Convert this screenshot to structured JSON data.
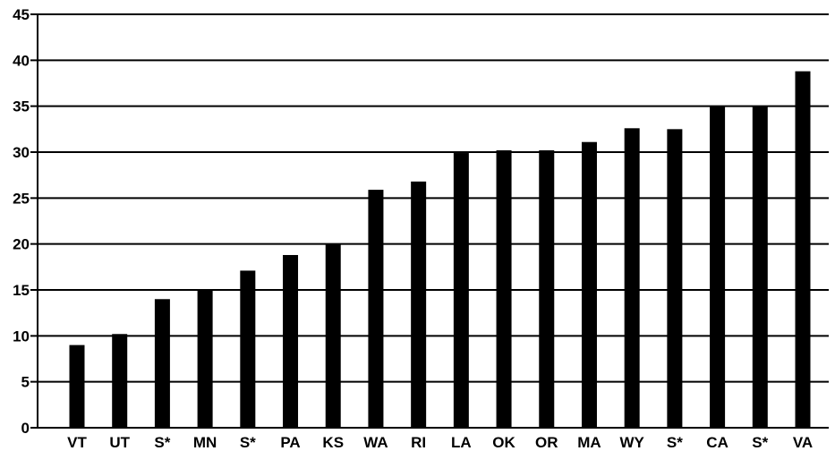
{
  "chart_data": {
    "type": "bar",
    "categories": [
      "VT",
      "UT",
      "S*",
      "MN",
      "S*",
      "PA",
      "KS",
      "WA",
      "RI",
      "LA",
      "OK",
      "OR",
      "MA",
      "WY",
      "S*",
      "CA",
      "S*",
      "VA"
    ],
    "values": [
      9,
      10.2,
      14,
      15,
      17.1,
      18.8,
      20,
      25.9,
      26.8,
      29.9,
      30.2,
      30.2,
      31.1,
      32.6,
      32.5,
      35,
      35,
      38.8
    ],
    "title": "",
    "xlabel": "",
    "ylabel": "",
    "ylim": [
      0,
      45
    ],
    "yticks": [
      "0",
      "5",
      "10",
      "15",
      "20",
      "25",
      "30",
      "35",
      "40",
      "45"
    ],
    "grid": "horizontal",
    "bar_color": "#000000",
    "legend": "none"
  }
}
